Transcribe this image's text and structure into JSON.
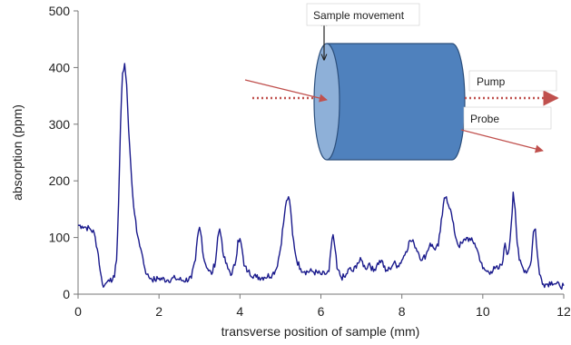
{
  "chart_data": {
    "type": "line",
    "title": "",
    "xlabel": "transverse position of sample (mm)",
    "ylabel": "absorption (ppm)",
    "xlim": [
      0,
      12
    ],
    "ylim": [
      0,
      500
    ],
    "x_ticks": [
      0,
      2,
      4,
      6,
      8,
      10,
      12
    ],
    "y_ticks": [
      0,
      100,
      200,
      300,
      400,
      500
    ],
    "grid": false,
    "line_color": "#1a1a8c",
    "series": [
      {
        "x": [
          0.0,
          0.1,
          0.2,
          0.3,
          0.4,
          0.5,
          0.55,
          0.6,
          0.65,
          0.7,
          0.75,
          0.8,
          0.85,
          0.9,
          0.95,
          1.0,
          1.05,
          1.1,
          1.15,
          1.2,
          1.25,
          1.3,
          1.35,
          1.4,
          1.45,
          1.5,
          1.55,
          1.6,
          1.65,
          1.7,
          1.75,
          1.8,
          1.9,
          2.0,
          2.2,
          2.4,
          2.6,
          2.8,
          2.9,
          2.95,
          3.0,
          3.05,
          3.1,
          3.2,
          3.3,
          3.4,
          3.45,
          3.5,
          3.55,
          3.6,
          3.7,
          3.8,
          3.9,
          3.95,
          4.0,
          4.05,
          4.1,
          4.2,
          4.4,
          4.6,
          4.8,
          4.9,
          5.0,
          5.1,
          5.15,
          5.2,
          5.25,
          5.3,
          5.4,
          5.5,
          5.6,
          5.8,
          6.0,
          6.1,
          6.2,
          6.25,
          6.3,
          6.35,
          6.4,
          6.5,
          6.6,
          6.7,
          6.8,
          6.9,
          7.0,
          7.1,
          7.2,
          7.3,
          7.4,
          7.5,
          7.6,
          7.7,
          7.8,
          7.9,
          8.0,
          8.1,
          8.2,
          8.3,
          8.4,
          8.5,
          8.6,
          8.7,
          8.8,
          8.9,
          9.0,
          9.05,
          9.1,
          9.2,
          9.3,
          9.4,
          9.5,
          9.6,
          9.7,
          9.8,
          9.9,
          10.0,
          10.1,
          10.2,
          10.3,
          10.4,
          10.5,
          10.55,
          10.6,
          10.65,
          10.7,
          10.75,
          10.8,
          10.85,
          10.9,
          11.0,
          11.1,
          11.2,
          11.25,
          11.3,
          11.35,
          11.4,
          11.5,
          11.6,
          11.7,
          11.8,
          11.9,
          12.0
        ],
        "y": [
          122,
          120,
          118,
          115,
          108,
          70,
          40,
          18,
          15,
          20,
          25,
          28,
          25,
          30,
          60,
          160,
          300,
          390,
          407,
          370,
          290,
          230,
          175,
          140,
          110,
          95,
          80,
          65,
          45,
          35,
          30,
          28,
          25,
          28,
          25,
          28,
          24,
          28,
          60,
          100,
          118,
          100,
          65,
          45,
          35,
          60,
          100,
          115,
          95,
          65,
          45,
          35,
          60,
          95,
          98,
          80,
          50,
          40,
          30,
          30,
          35,
          45,
          80,
          140,
          165,
          172,
          150,
          105,
          60,
          45,
          40,
          40,
          35,
          35,
          40,
          80,
          105,
          80,
          45,
          30,
          30,
          45,
          40,
          55,
          60,
          45,
          55,
          40,
          55,
          60,
          40,
          45,
          55,
          50,
          60,
          75,
          95,
          90,
          75,
          60,
          70,
          90,
          80,
          85,
          140,
          170,
          172,
          150,
          110,
          85,
          90,
          100,
          95,
          90,
          70,
          45,
          40,
          40,
          45,
          45,
          60,
          90,
          70,
          80,
          120,
          180,
          150,
          90,
          60,
          45,
          40,
          60,
          110,
          115,
          70,
          35,
          18,
          18,
          22,
          18,
          15,
          15
        ]
      }
    ]
  },
  "annotations": {
    "sample_movement": "Sample movement",
    "pump": "Pump",
    "probe": "Probe"
  },
  "colors": {
    "cylinder_body": "#4f81bd",
    "cylinder_face": "#8eb0d8",
    "cylinder_edge": "#2c4f7c",
    "beam": "#c0504d"
  }
}
